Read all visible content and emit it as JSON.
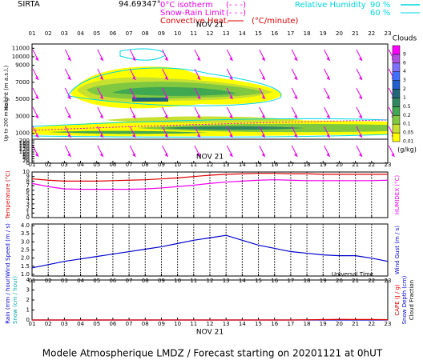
{
  "header": {
    "site": "SIRTA",
    "coord": "94.69347°",
    "isotherm": "0°C isotherm",
    "isotherm_key": "(- - -)",
    "snow_rain": "Snow-Rain Limit",
    "snow_rain_key": "(- - -)",
    "convective": "Convective Heat.",
    "convective_unit": "(°C/minute)",
    "rh_label": "Relative Humidity",
    "rh_levels": [
      {
        "value": 90,
        "label": "90 %"
      },
      {
        "value": 60,
        "label": "60 %"
      }
    ]
  },
  "chart_data": [
    {
      "type": "contour",
      "date": "NOV 21",
      "ylabel": "Height (m a.s.l.)",
      "categories": [
        "01",
        "02",
        "03",
        "04",
        "05",
        "06",
        "07",
        "08",
        "09",
        "10",
        "11",
        "12",
        "13",
        "14",
        "15",
        "16",
        "17",
        "18",
        "19",
        "20",
        "21",
        "22",
        "23"
      ],
      "ylim": [
        500,
        11500
      ],
      "yticks": [
        1000,
        3000,
        5000,
        7000,
        9000,
        10000,
        11000
      ],
      "low_axis": {
        "label": "Up to 200 m a.s.l.",
        "ylim": [
          0,
          200
        ],
        "yticks": [
          0,
          20,
          40,
          60,
          80,
          100,
          120,
          140,
          160,
          180,
          200
        ]
      },
      "colorbar": {
        "label": "Clouds",
        "unit": "(g/kg)",
        "levels": [
          0.01,
          0.05,
          0.1,
          0.2,
          0.5,
          1,
          2,
          3,
          4,
          6,
          9
        ],
        "colors": [
          "#ffff00",
          "#c8e030",
          "#80c840",
          "#40a850",
          "#308860",
          "#206878",
          "#2060d0",
          "#4070ff",
          "#8070ff",
          "#b050e0",
          "#ff00ff"
        ]
      }
    },
    {
      "type": "line",
      "date": "NOV 21",
      "ylabel": "Temperature (°C)",
      "y2label": "HUMIDEX (°C)",
      "grid": true,
      "categories": [
        "01",
        "02",
        "03",
        "04",
        "05",
        "06",
        "07",
        "08",
        "09",
        "10",
        "11",
        "12",
        "13",
        "14",
        "15",
        "16",
        "17",
        "18",
        "19",
        "20",
        "21",
        "22",
        "23"
      ],
      "ylim": [
        0,
        10
      ],
      "yticks": [
        0,
        1,
        2,
        3,
        4,
        5,
        6,
        7,
        8,
        9,
        10
      ],
      "series": [
        {
          "color": "#dd0000",
          "values": [
            8.5,
            8.2,
            8.0,
            8.0,
            8.0,
            8.1,
            8.2,
            8.3,
            8.5,
            8.7,
            9.0,
            9.3,
            9.5,
            9.6,
            9.7,
            9.7,
            9.6,
            9.6,
            9.5,
            9.5,
            9.5,
            9.5,
            9.5
          ]
        },
        {
          "color": "#ee00ee",
          "values": [
            7.5,
            6.8,
            6.3,
            6.2,
            6.2,
            6.2,
            6.2,
            6.3,
            6.5,
            6.8,
            7.1,
            7.5,
            7.8,
            8.0,
            8.2,
            8.3,
            8.2,
            8.1,
            8.1,
            8.1,
            8.1,
            8.1,
            8.2
          ]
        }
      ]
    },
    {
      "type": "line",
      "ylabel": "Wind Speed (m / s)",
      "y2label": "Wind Gust (m / s)",
      "grid": true,
      "categories": [
        "01",
        "02",
        "03",
        "04",
        "05",
        "06",
        "07",
        "08",
        "09",
        "10",
        "11",
        "12",
        "13",
        "14",
        "15",
        "16",
        "17",
        "18",
        "19",
        "20",
        "21",
        "22",
        "23"
      ],
      "ylim": [
        0.9,
        4.1
      ],
      "yticks": [
        {
          "value": 1,
          "label": "1.0"
        },
        {
          "value": 1.5,
          "label": "1.5"
        },
        {
          "value": 2,
          "label": "2.0"
        },
        {
          "value": 2.5,
          "label": "2.5"
        },
        {
          "value": 3,
          "label": "3.0"
        },
        {
          "value": 3.5,
          "label": "3.5"
        },
        {
          "value": 4,
          "label": "4.0"
        }
      ],
      "series": [
        {
          "color": "#0000cc",
          "values": [
            1.4,
            1.6,
            1.8,
            1.95,
            2.1,
            2.25,
            2.4,
            2.55,
            2.7,
            2.9,
            3.1,
            3.25,
            3.4,
            3.1,
            2.8,
            2.6,
            2.4,
            2.3,
            2.2,
            2.15,
            2.15,
            2.0,
            1.8
          ]
        }
      ]
    },
    {
      "type": "line",
      "date": "NOV 21",
      "ylabel": "Rain (mm / hour)",
      "ylabel2": "Snow (cm / hour)",
      "y2label": "CAPE (J / g)",
      "y2label2": "Snow Depth (cm)",
      "y2label3": "Cloud Fraction",
      "xlabel": "Universal Time",
      "categories": [
        "01",
        "02",
        "03",
        "04",
        "05",
        "06",
        "07",
        "08",
        "09",
        "10",
        "11",
        "12",
        "13",
        "14",
        "15",
        "16",
        "17",
        "18",
        "19",
        "20",
        "21",
        "22",
        "23"
      ],
      "ylim": [
        0,
        4
      ],
      "yticks": [
        0,
        1,
        2,
        3,
        4
      ],
      "series": [
        {
          "color": "#0000cc",
          "values": [
            0,
            0,
            0,
            0,
            0,
            0,
            0,
            0,
            0,
            0,
            0,
            0,
            0,
            0,
            0,
            0,
            0,
            0,
            0,
            0,
            0,
            0,
            0
          ]
        },
        {
          "color": "#dd0000",
          "values": [
            0,
            0,
            0,
            0,
            0,
            0,
            0,
            0,
            0,
            0,
            0,
            0,
            0,
            0,
            0,
            0,
            0,
            0.02,
            0.04,
            0.06,
            0.05,
            0.05,
            0.03
          ]
        }
      ]
    }
  ],
  "footer": "Modele Atmospherique LMDZ / Forecast starting on 20201121 at 0hUT"
}
